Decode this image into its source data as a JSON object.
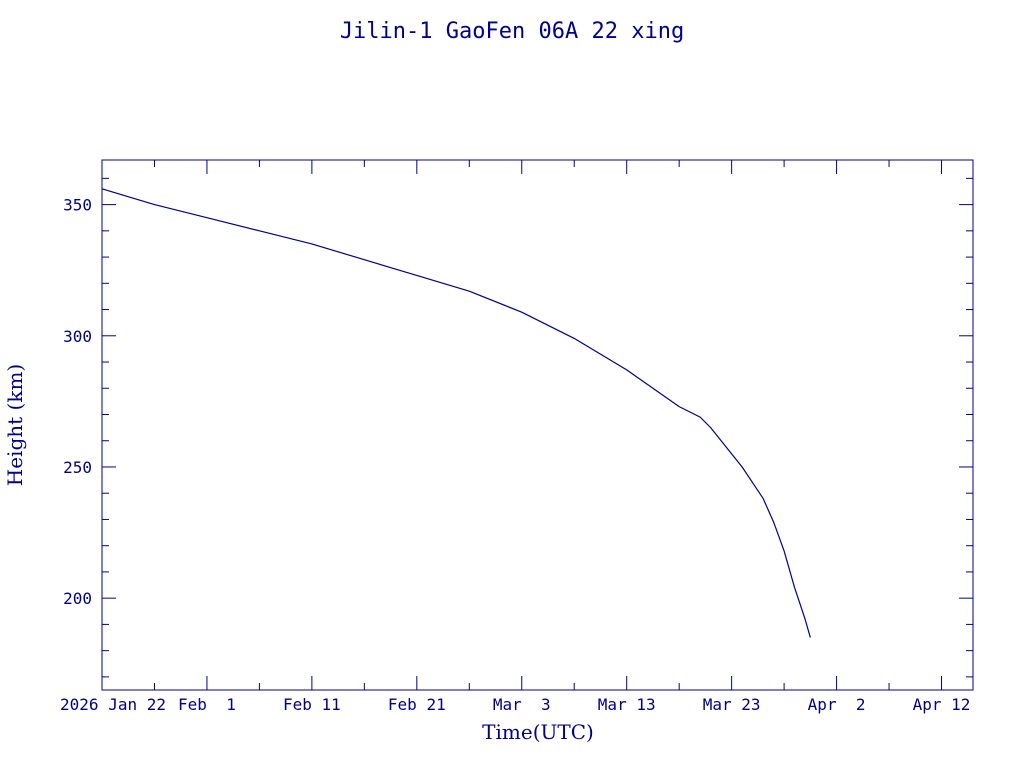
{
  "colors": {
    "ink": "#00008b",
    "background": "#ffffff"
  },
  "chart_data": {
    "type": "line",
    "title": "Jilin-1 GaoFen 06A 22 xing",
    "xlabel": "Time(UTC)",
    "ylabel": "Height (km)",
    "x_axis_kind": "date",
    "xlim": [
      "2026-01-22",
      "2026-04-15"
    ],
    "ylim": [
      165,
      367
    ],
    "x_ticks": [
      {
        "date": "2026-01-22",
        "label": "2026 Jan 22"
      },
      {
        "date": "2026-02-01",
        "label": "Feb  1"
      },
      {
        "date": "2026-02-11",
        "label": "Feb 11"
      },
      {
        "date": "2026-02-21",
        "label": "Feb 21"
      },
      {
        "date": "2026-03-03",
        "label": "Mar  3"
      },
      {
        "date": "2026-03-13",
        "label": "Mar 13"
      },
      {
        "date": "2026-03-23",
        "label": "Mar 23"
      },
      {
        "date": "2026-04-02",
        "label": "Apr  2"
      },
      {
        "date": "2026-04-12",
        "label": "Apr 12"
      }
    ],
    "y_ticks": [
      200,
      250,
      300,
      350
    ],
    "grid": false,
    "legend": "none",
    "series": [
      {
        "x": [
          "2026-01-22",
          "2026-01-27",
          "2026-02-01",
          "2026-02-06",
          "2026-02-11",
          "2026-02-16",
          "2026-02-21",
          "2026-02-26",
          "2026-03-03",
          "2026-03-08",
          "2026-03-13",
          "2026-03-18",
          "2026-03-20",
          "2026-03-21",
          "2026-03-24",
          "2026-03-26",
          "2026-03-27",
          "2026-03-28",
          "2026-03-29",
          "2026-03-30",
          "2026-03-30T12:00"
        ],
        "y": [
          356,
          350,
          345,
          340,
          335,
          329,
          323,
          317,
          309,
          299,
          287,
          273,
          269,
          265,
          250,
          238,
          229,
          218,
          204,
          192,
          185
        ]
      }
    ]
  }
}
